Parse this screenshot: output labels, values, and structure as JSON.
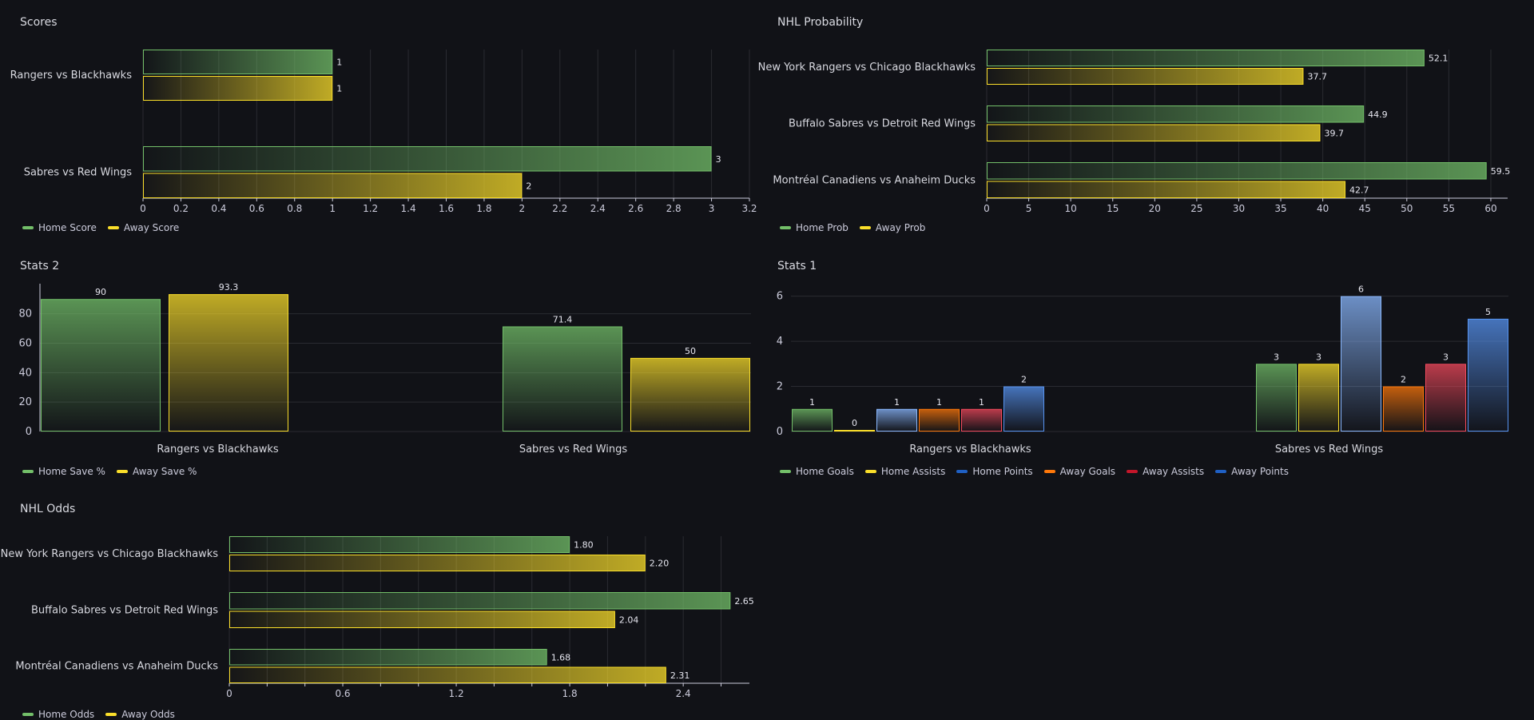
{
  "colors": {
    "green": "#73bf69",
    "yellow": "#fade2a",
    "blue": "#5794f2",
    "orange": "#ff780a",
    "red": "#f2495c",
    "darkblue": "#1f60c4",
    "darkyellow": "#e0b400"
  },
  "panels": [
    {
      "id": "scores",
      "title": "Scores",
      "legend": [
        {
          "label": "Home Score",
          "color": "#73bf69"
        },
        {
          "label": "Away Score",
          "color": "#fade2a"
        }
      ]
    },
    {
      "id": "prob",
      "title": "NHL Probability",
      "legend": [
        {
          "label": "Home Prob",
          "color": "#73bf69"
        },
        {
          "label": "Away Prob",
          "color": "#fade2a"
        }
      ]
    },
    {
      "id": "stats2",
      "title": "Stats 2",
      "legend": [
        {
          "label": "Home Save %",
          "color": "#73bf69"
        },
        {
          "label": "Away Save %",
          "color": "#fade2a"
        }
      ]
    },
    {
      "id": "stats1",
      "title": "Stats 1",
      "legend": [
        {
          "label": "Home Goals",
          "color": "#73bf69"
        },
        {
          "label": "Home Assists",
          "color": "#fade2a"
        },
        {
          "label": "Home Points",
          "color": "#1f60c4"
        },
        {
          "label": "Away Goals",
          "color": "#ff780a"
        },
        {
          "label": "Away Assists",
          "color": "#c4162a"
        },
        {
          "label": "Away Points",
          "color": "#1f60c4"
        }
      ]
    },
    {
      "id": "odds",
      "title": "NHL Odds",
      "legend": [
        {
          "label": "Home Odds",
          "color": "#73bf69"
        },
        {
          "label": "Away Odds",
          "color": "#fade2a"
        }
      ]
    }
  ],
  "chart_data": [
    {
      "id": "scores",
      "type": "bar",
      "orientation": "horizontal",
      "categories": [
        "Rangers vs Blackhawks",
        "Sabres vs Red Wings"
      ],
      "series": [
        {
          "name": "Home Score",
          "color": "#73bf69",
          "values": [
            1,
            3
          ],
          "labels": [
            "1",
            "3"
          ]
        },
        {
          "name": "Away Score",
          "color": "#fade2a",
          "values": [
            1,
            2
          ],
          "labels": [
            "1",
            "2"
          ]
        }
      ],
      "xlim": [
        0,
        3.2
      ],
      "ticks": [
        "0",
        "0.2",
        "0.4",
        "0.6",
        "0.8",
        "1",
        "1.2",
        "1.4",
        "1.6",
        "1.8",
        "2",
        "2.2",
        "2.4",
        "2.6",
        "2.8",
        "3",
        "3.2"
      ],
      "tick_values": [
        0,
        0.2,
        0.4,
        0.6,
        0.8,
        1,
        1.2,
        1.4,
        1.6,
        1.8,
        2,
        2.2,
        2.4,
        2.6,
        2.8,
        3,
        3.2
      ],
      "grid": true
    },
    {
      "id": "prob",
      "type": "bar",
      "orientation": "horizontal",
      "categories": [
        "New York Rangers vs Chicago Blackhawks",
        "Buffalo Sabres vs Detroit Red Wings",
        "Montréal Canadiens vs Anaheim Ducks"
      ],
      "series": [
        {
          "name": "Home Prob",
          "color": "#73bf69",
          "values": [
            52.1,
            44.9,
            59.5
          ],
          "labels": [
            "52.1",
            "44.9",
            "59.5"
          ]
        },
        {
          "name": "Away Prob",
          "color": "#fade2a",
          "values": [
            37.7,
            39.7,
            42.7
          ],
          "labels": [
            "37.7",
            "39.7",
            "42.7"
          ]
        }
      ],
      "xlim": [
        0,
        62
      ],
      "ticks": [
        "0",
        "5",
        "10",
        "15",
        "20",
        "25",
        "30",
        "35",
        "40",
        "45",
        "50",
        "55",
        "60"
      ],
      "tick_values": [
        0,
        5,
        10,
        15,
        20,
        25,
        30,
        35,
        40,
        45,
        50,
        55,
        60
      ],
      "grid": true
    },
    {
      "id": "stats2",
      "type": "bar",
      "orientation": "vertical",
      "categories": [
        "Rangers vs Blackhawks",
        "Sabres vs Red Wings"
      ],
      "series": [
        {
          "name": "Home Save %",
          "color": "#73bf69",
          "values": [
            90,
            71.4
          ],
          "labels": [
            "90",
            "71.4"
          ]
        },
        {
          "name": "Away Save %",
          "color": "#fade2a",
          "values": [
            93.3,
            50
          ],
          "labels": [
            "93.3",
            "50"
          ]
        }
      ],
      "ylim": [
        0,
        95
      ],
      "ticks": [
        "0",
        "20",
        "40",
        "60",
        "80"
      ],
      "tick_values": [
        0,
        20,
        40,
        60,
        80
      ],
      "grid": true
    },
    {
      "id": "stats1",
      "type": "bar",
      "orientation": "vertical",
      "categories": [
        "Rangers vs Blackhawks",
        "Sabres vs Red Wings"
      ],
      "series": [
        {
          "name": "Home Goals",
          "color": "#73bf69",
          "values": [
            1,
            3
          ],
          "labels": [
            "1",
            "3"
          ]
        },
        {
          "name": "Home Assists",
          "color": "#fade2a",
          "values": [
            0,
            3
          ],
          "labels": [
            "0",
            "3"
          ]
        },
        {
          "name": "Home Points",
          "color": "#8ab8ff",
          "values": [
            1,
            6
          ],
          "labels": [
            "1",
            "6"
          ]
        },
        {
          "name": "Away Goals",
          "color": "#ff780a",
          "values": [
            1,
            2
          ],
          "labels": [
            "1",
            "2"
          ]
        },
        {
          "name": "Away Assists",
          "color": "#f2495c",
          "values": [
            1,
            3
          ],
          "labels": [
            "1",
            "3"
          ]
        },
        {
          "name": "Away Points",
          "color": "#5794f2",
          "values": [
            2,
            5
          ],
          "labels": [
            "2",
            "5"
          ]
        }
      ],
      "ylim": [
        0,
        6.2
      ],
      "ticks": [
        "0",
        "2",
        "4",
        "6"
      ],
      "tick_values": [
        0,
        2,
        4,
        6
      ],
      "grid": true
    },
    {
      "id": "odds",
      "type": "bar",
      "orientation": "horizontal",
      "categories": [
        "New York Rangers vs Chicago Blackhawks",
        "Buffalo Sabres vs Detroit Red Wings",
        "Montréal Canadiens vs Anaheim Ducks"
      ],
      "series": [
        {
          "name": "Home Odds",
          "color": "#73bf69",
          "values": [
            1.8,
            2.65,
            1.68
          ],
          "labels": [
            "1.80",
            "2.65",
            "1.68"
          ]
        },
        {
          "name": "Away Odds",
          "color": "#fade2a",
          "values": [
            2.2,
            2.04,
            2.31
          ],
          "labels": [
            "2.20",
            "2.04",
            "2.31"
          ]
        }
      ],
      "xlim": [
        0,
        2.75
      ],
      "ticks": [
        "0",
        "0.6",
        "1.2",
        "1.8",
        "2.4"
      ],
      "tick_values": [
        0,
        0.6,
        1.2,
        1.8,
        2.4
      ],
      "minor_tick_values": [
        0.2,
        0.4,
        0.8,
        1.0,
        1.4,
        1.6,
        2.0,
        2.2,
        2.6
      ],
      "grid": true
    }
  ]
}
